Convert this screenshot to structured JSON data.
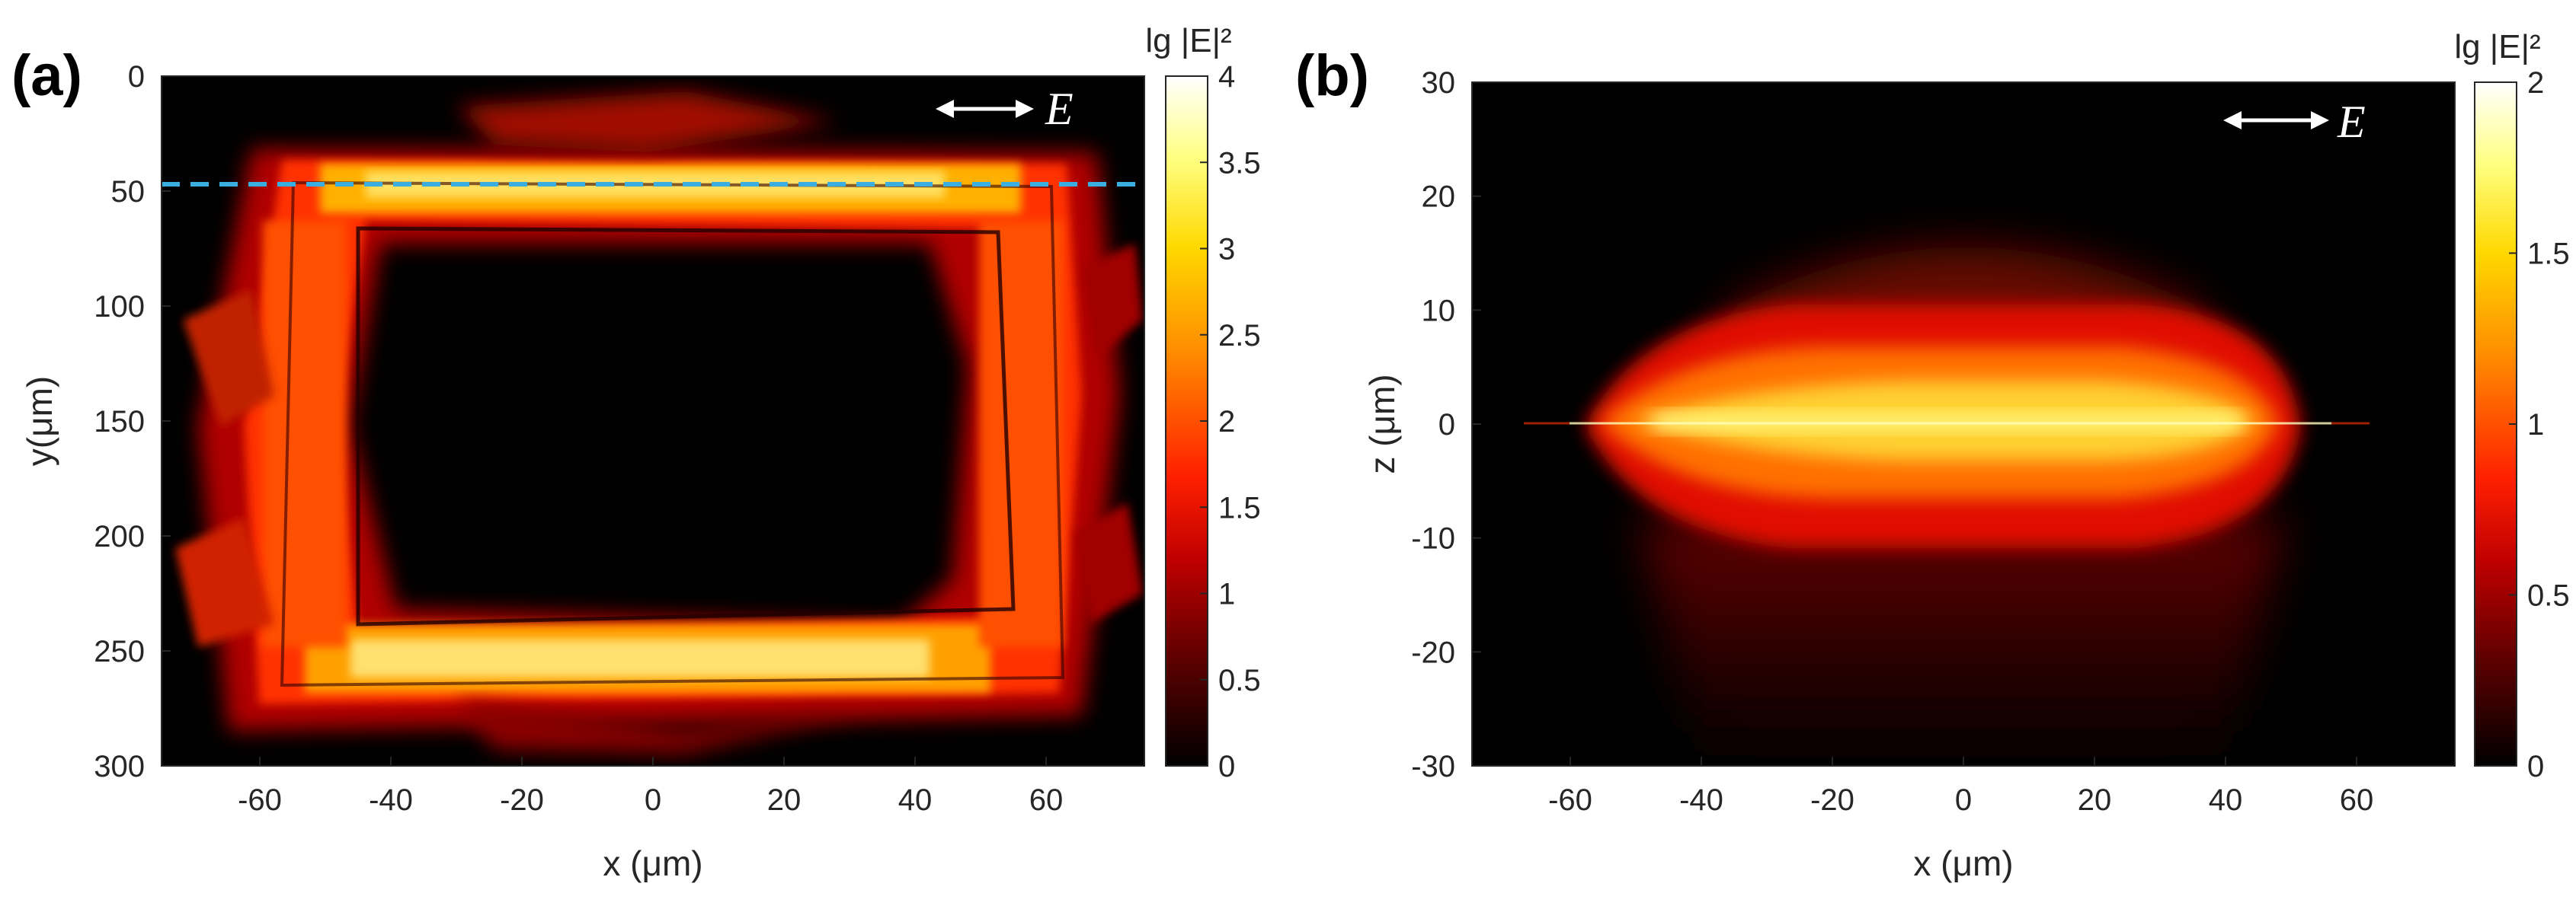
{
  "chart_data": [
    {
      "type": "heatmap",
      "panel_label": "(a)",
      "xlabel": "x (μm)",
      "ylabel": "y(μm)",
      "xlim": [
        -75,
        75
      ],
      "ylim": [
        0,
        300
      ],
      "y_reversed": true,
      "xticks": [
        -60,
        -40,
        -20,
        0,
        20,
        40,
        60
      ],
      "yticks": [
        0,
        50,
        100,
        150,
        200,
        250,
        300
      ],
      "colorbar": {
        "title": "lg |E|²",
        "range": [
          0,
          4
        ],
        "ticks": [
          0,
          0.5,
          1,
          1.5,
          2,
          2.5,
          3,
          3.5,
          4
        ],
        "colormap": "hot"
      },
      "polarization_label": "E",
      "cut_line": {
        "y": 47,
        "color": "#3aaee0",
        "style": "dashed"
      },
      "field_ring": {
        "x_range": [
          -55,
          58
        ],
        "y_range": [
          40,
          265
        ],
        "peak_value": 3.3,
        "inner_value": 0
      }
    },
    {
      "type": "heatmap",
      "panel_label": "(b)",
      "xlabel": "x (μm)",
      "ylabel": "z (μm)",
      "xlim": [
        -75,
        75
      ],
      "ylim": [
        -30,
        30
      ],
      "xticks": [
        -60,
        -40,
        -20,
        0,
        20,
        40,
        60
      ],
      "yticks": [
        -30,
        -20,
        -10,
        0,
        10,
        20,
        30
      ],
      "colorbar": {
        "title": "lg |E|²",
        "range": [
          0,
          2
        ],
        "ticks": [
          0,
          0.5,
          1,
          1.5,
          2
        ],
        "colormap": "hot"
      },
      "polarization_label": "E",
      "field_band": {
        "x_range": [
          -58,
          58
        ],
        "z_center": 0,
        "peak_value": 1.8
      }
    }
  ]
}
